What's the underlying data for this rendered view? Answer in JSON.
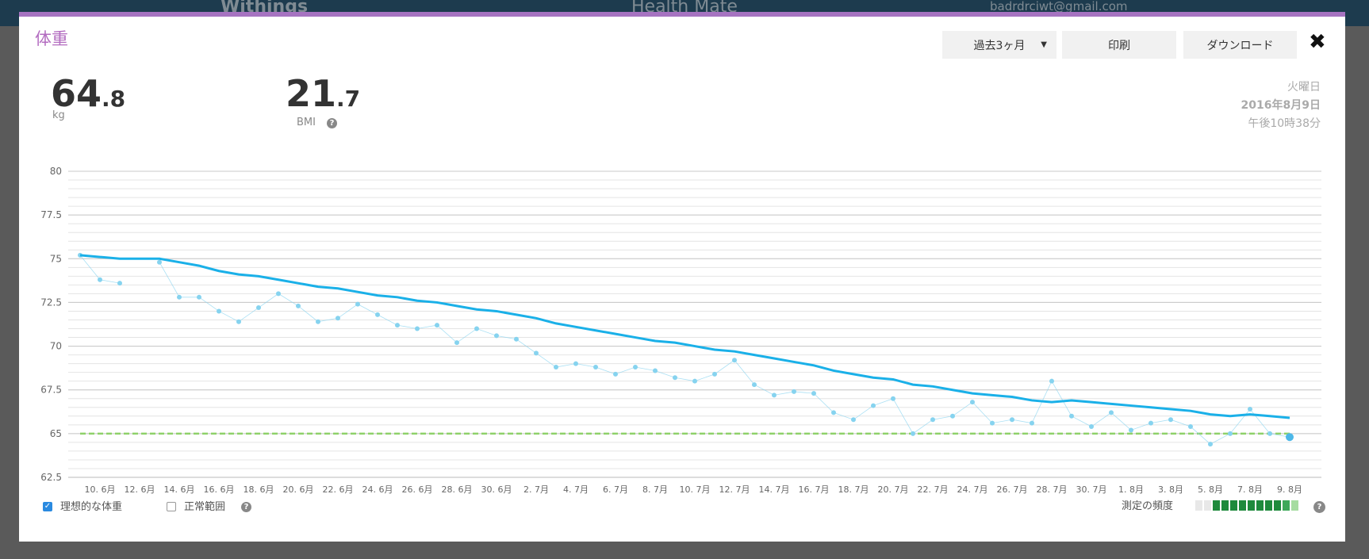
{
  "header": {
    "brand": "Withings",
    "app": "Health Mate",
    "account": "badrdrciwt@gmail.com"
  },
  "modal": {
    "title": "体重",
    "buttons": {
      "period": "過去3ヶ月",
      "print": "印刷",
      "download": "ダウンロード"
    },
    "weight": {
      "integer": "64",
      "decimal": ".8",
      "unit": "kg"
    },
    "bmi": {
      "integer": "21",
      "decimal": ".7",
      "label": "BMI"
    },
    "date": {
      "weekday": "火曜日",
      "day": "2016年8月9日",
      "time": "午後10時38分"
    },
    "controls": {
      "ideal": "理想的な体重",
      "normal": "正常範囲",
      "frequency": "測定の頻度"
    }
  },
  "chart_data": {
    "type": "line",
    "categories": [
      null,
      "10. 6月",
      null,
      "12. 6月",
      null,
      "14. 6月",
      null,
      "16. 6月",
      null,
      "18. 6月",
      null,
      "20. 6月",
      null,
      "22. 6月",
      null,
      "24. 6月",
      null,
      "26. 6月",
      null,
      "28. 6月",
      null,
      "30. 6月",
      null,
      "2. 7月",
      null,
      "4. 7月",
      null,
      "6. 7月",
      null,
      "8. 7月",
      null,
      "10. 7月",
      null,
      "12. 7月",
      null,
      "14. 7月",
      null,
      "16. 7月",
      null,
      "18. 7月",
      null,
      "20. 7月",
      null,
      "22. 7月",
      null,
      "24. 7月",
      null,
      "26. 7月",
      null,
      "28. 7月",
      null,
      "30. 7月",
      null,
      "1. 8月",
      null,
      "3. 8月",
      null,
      "5. 8月",
      null,
      "7. 8月",
      null,
      "9. 8月"
    ],
    "series": [
      {
        "color": "#86d3ef",
        "style": "dots",
        "values": [
          75.2,
          73.8,
          73.6,
          null,
          74.8,
          72.8,
          72.8,
          72.0,
          71.4,
          72.2,
          73.0,
          72.3,
          71.4,
          71.6,
          72.4,
          71.8,
          71.2,
          71.0,
          71.2,
          70.2,
          71.0,
          70.6,
          70.4,
          69.6,
          68.8,
          69.0,
          68.8,
          68.4,
          68.8,
          68.6,
          68.2,
          68.0,
          68.4,
          69.2,
          67.8,
          67.2,
          67.4,
          67.3,
          66.2,
          65.8,
          66.6,
          67.0,
          65.0,
          65.8,
          66.0,
          66.8,
          65.6,
          65.8,
          65.6,
          68.0,
          66.0,
          65.4,
          66.2,
          65.2,
          65.6,
          65.8,
          65.4,
          64.4,
          65.0,
          66.4,
          65.0,
          64.8
        ]
      },
      {
        "color": "#1ab0e8",
        "style": "trend",
        "values": [
          75.2,
          75.1,
          75.0,
          75.0,
          75.0,
          74.8,
          74.6,
          74.3,
          74.1,
          74.0,
          73.8,
          73.6,
          73.4,
          73.3,
          73.1,
          72.9,
          72.8,
          72.6,
          72.5,
          72.3,
          72.1,
          72.0,
          71.8,
          71.6,
          71.3,
          71.1,
          70.9,
          70.7,
          70.5,
          70.3,
          70.2,
          70.0,
          69.8,
          69.7,
          69.5,
          69.3,
          69.1,
          68.9,
          68.6,
          68.4,
          68.2,
          68.1,
          67.8,
          67.7,
          67.5,
          67.3,
          67.2,
          67.1,
          66.9,
          66.8,
          66.9,
          66.8,
          66.7,
          66.6,
          66.5,
          66.4,
          66.3,
          66.1,
          66.0,
          66.1,
          66.0,
          65.9
        ]
      }
    ],
    "reference_line": {
      "value": 65,
      "color": "#8fd16a"
    },
    "ylim": [
      62.5,
      80
    ],
    "yticks": [
      62.5,
      65,
      67.5,
      70,
      72.5,
      75,
      77.5,
      80
    ],
    "grid": true,
    "minor_grid": 0.5
  }
}
